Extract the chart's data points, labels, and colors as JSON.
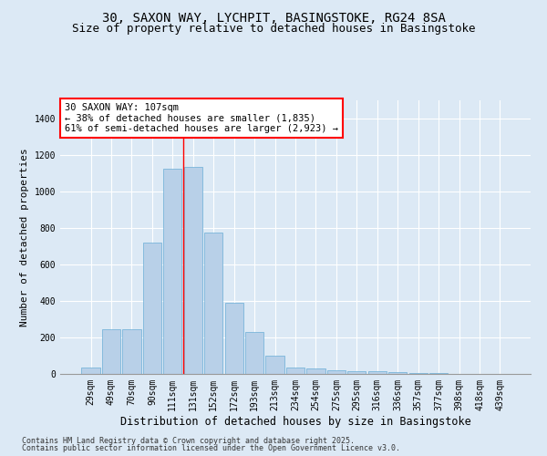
{
  "title1": "30, SAXON WAY, LYCHPIT, BASINGSTOKE, RG24 8SA",
  "title2": "Size of property relative to detached houses in Basingstoke",
  "xlabel": "Distribution of detached houses by size in Basingstoke",
  "ylabel": "Number of detached properties",
  "categories": [
    "29sqm",
    "49sqm",
    "70sqm",
    "90sqm",
    "111sqm",
    "131sqm",
    "152sqm",
    "172sqm",
    "193sqm",
    "213sqm",
    "234sqm",
    "254sqm",
    "275sqm",
    "295sqm",
    "316sqm",
    "336sqm",
    "357sqm",
    "377sqm",
    "398sqm",
    "418sqm",
    "439sqm"
  ],
  "values": [
    35,
    245,
    245,
    720,
    1125,
    1135,
    775,
    390,
    228,
    100,
    35,
    30,
    20,
    15,
    15,
    10,
    5,
    3,
    2,
    2,
    1
  ],
  "bar_color": "#b8d0e8",
  "bar_edge_color": "#6aaed6",
  "vline_x": 4.5,
  "vline_color": "red",
  "annotation_text": "30 SAXON WAY: 107sqm\n← 38% of detached houses are smaller (1,835)\n61% of semi-detached houses are larger (2,923) →",
  "annotation_box_color": "white",
  "annotation_box_edge": "red",
  "ylim": [
    0,
    1500
  ],
  "yticks": [
    0,
    200,
    400,
    600,
    800,
    1000,
    1200,
    1400
  ],
  "bg_color": "#dce9f5",
  "plot_bg": "#dce9f5",
  "footer1": "Contains HM Land Registry data © Crown copyright and database right 2025.",
  "footer2": "Contains public sector information licensed under the Open Government Licence v3.0.",
  "title1_fontsize": 10,
  "title2_fontsize": 9,
  "xlabel_fontsize": 8.5,
  "ylabel_fontsize": 8,
  "tick_fontsize": 7,
  "annot_fontsize": 7.5,
  "footer_fontsize": 6
}
